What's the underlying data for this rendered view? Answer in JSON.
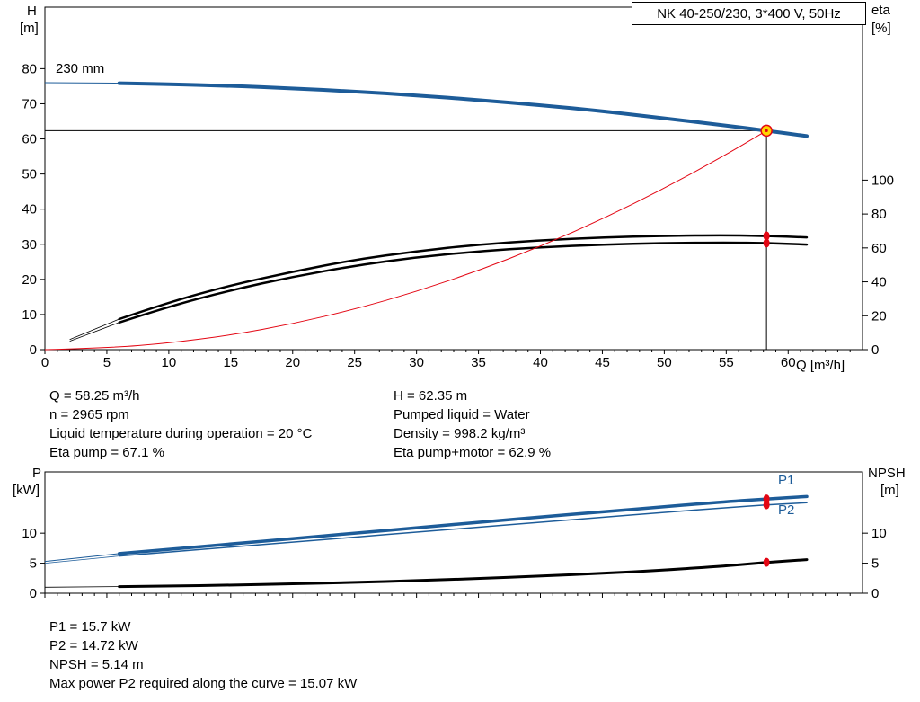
{
  "title_box": {
    "label": "NK 40-250/230, 3*400 V, 50Hz"
  },
  "top_chart": {
    "y_left_unit_top": "H",
    "y_left_unit_bottom": "[m]",
    "y_right_unit_top": "eta",
    "y_right_unit_bottom": "[%]",
    "x_axis_label": "Q [m³/h]",
    "impeller_label": "230 mm"
  },
  "bottom_chart": {
    "y_left_unit_top": "P",
    "y_left_unit_bottom": "[kW]",
    "y_right_unit_top": "NPSH",
    "y_right_unit_bottom": "[m]",
    "p1_label": "P1",
    "p2_label": "P2"
  },
  "results_top": {
    "left_lines": [
      "Q = 58.25 m³/h",
      "n = 2965 rpm",
      "Liquid temperature during operation = 20 °C",
      "Eta pump = 67.1 %"
    ],
    "right_lines": [
      "H = 62.35 m",
      "Pumped liquid = Water",
      "Density = 998.2 kg/m³",
      "Eta pump+motor = 62.9 %"
    ]
  },
  "results_bottom": {
    "lines": [
      "P1 = 15.7 kW",
      "P2 = 14.72 kW",
      "NPSH = 5.14 m",
      "Max power P2 required along the curve = 15.07 kW"
    ]
  },
  "colors": {
    "curve_blue": "#1d5c99",
    "curve_red": "#e30613",
    "curve_black": "#000000",
    "marker_yellow": "#ffd500"
  },
  "chart_data": [
    {
      "type": "line",
      "title": "NK 40-250/230, 3*400 V, 50Hz",
      "xlabel": "Q [m³/h]",
      "ylabel_left": "H [m]",
      "ylabel_right": "eta [%]",
      "xlim": [
        0,
        66
      ],
      "ylim_left": [
        0,
        97.5
      ],
      "ylim_right": [
        0,
        202
      ],
      "x_major_ticks": [
        0,
        5,
        10,
        15,
        20,
        25,
        30,
        35,
        40,
        45,
        50,
        55,
        60
      ],
      "x_minor_step": 1,
      "x_tick_labels": true,
      "y_left_ticks": [
        0,
        10,
        20,
        30,
        40,
        50,
        60,
        70,
        80
      ],
      "y_right_ticks": [
        0,
        20,
        40,
        60,
        80,
        100
      ],
      "grid": false,
      "series": [
        {
          "name": "head-230mm",
          "axis": "left",
          "color": "#1d5c99",
          "width": 4,
          "thin_until": 6,
          "thin_width": 1,
          "x": [
            0,
            3,
            6,
            10,
            15,
            20,
            25,
            30,
            35,
            40,
            45,
            50,
            55,
            58.25,
            61.5
          ],
          "y": [
            76,
            75.95,
            75.85,
            75.6,
            75.1,
            74.4,
            73.5,
            72.4,
            71.1,
            69.6,
            67.9,
            65.9,
            63.8,
            62.35,
            60.8
          ]
        },
        {
          "name": "eta-pump",
          "axis": "right",
          "color": "#000000",
          "width": 2.5,
          "thin_until": 6,
          "thin_width": 0.8,
          "x": [
            2,
            6,
            10,
            15,
            20,
            25,
            30,
            35,
            40,
            45,
            50,
            55,
            58.25,
            61.5
          ],
          "y": [
            6,
            18,
            28,
            38,
            46,
            53,
            58,
            62,
            64.5,
            66.2,
            67.2,
            67.5,
            67.1,
            66.2
          ]
        },
        {
          "name": "eta-pump-motor",
          "axis": "right",
          "color": "#000000",
          "width": 2.5,
          "thin_until": 6,
          "thin_width": 0.8,
          "x": [
            2,
            6,
            10,
            15,
            20,
            25,
            30,
            35,
            40,
            45,
            50,
            55,
            58.25,
            61.5
          ],
          "y": [
            5,
            16,
            25.5,
            35,
            43,
            49.5,
            54.5,
            58,
            60.4,
            62,
            62.9,
            63.2,
            62.9,
            62
          ]
        },
        {
          "name": "system-curve",
          "axis": "left",
          "color": "#e30613",
          "width": 1,
          "x": [
            0,
            5,
            10,
            15,
            20,
            25,
            30,
            35,
            40,
            45,
            50,
            55,
            58.25
          ],
          "y": [
            0,
            0.46,
            1.84,
            4.13,
            7.35,
            11.48,
            16.53,
            22.5,
            29.38,
            37.18,
            45.9,
            55.54,
            62.35
          ]
        }
      ],
      "duty_point": {
        "q": 58.25,
        "h": 62.35
      },
      "markers": [
        {
          "axis": "left",
          "x": 58.25,
          "y": 62.35,
          "shape": "circle",
          "r": 6,
          "fill": "#ffd500",
          "stroke": "#e30613",
          "name": "duty-point-marker"
        },
        {
          "axis": "right",
          "x": 58.25,
          "y": 67.1,
          "shape": "ellipse",
          "rx": 3.5,
          "ry": 5,
          "fill": "#e30613",
          "name": "eta-pump-marker"
        },
        {
          "axis": "right",
          "x": 58.25,
          "y": 62.9,
          "shape": "ellipse",
          "rx": 3.5,
          "ry": 5,
          "fill": "#e30613",
          "name": "eta-pump-motor-marker"
        }
      ]
    },
    {
      "type": "line",
      "title": "",
      "xlabel": "",
      "ylabel_left": "P [kW]",
      "ylabel_right": "NPSH [m]",
      "xlim": [
        0,
        66
      ],
      "ylim_left": [
        0,
        20.2
      ],
      "ylim_right": [
        0,
        20.2
      ],
      "x_major_ticks": [
        0,
        5,
        10,
        15,
        20,
        25,
        30,
        35,
        40,
        45,
        50,
        55,
        60
      ],
      "x_minor_step": 1,
      "x_tick_labels": false,
      "y_left_ticks": [
        0,
        5,
        10
      ],
      "y_right_ticks": [
        0,
        5,
        10
      ],
      "grid": false,
      "series": [
        {
          "name": "p1",
          "axis": "left",
          "color": "#1d5c99",
          "width": 3.5,
          "thin_until": 6,
          "thin_width": 1,
          "x": [
            0,
            3,
            6,
            10,
            15,
            20,
            25,
            30,
            35,
            40,
            45,
            50,
            55,
            58.25,
            61.5
          ],
          "y": [
            5.3,
            5.95,
            6.6,
            7.3,
            8.2,
            9.1,
            10.0,
            10.9,
            11.8,
            12.7,
            13.55,
            14.4,
            15.25,
            15.7,
            16.1
          ]
        },
        {
          "name": "p2",
          "axis": "left",
          "color": "#1d5c99",
          "width": 1.5,
          "thin_until": 6,
          "thin_width": 0.8,
          "x": [
            0,
            3,
            6,
            10,
            15,
            20,
            25,
            30,
            35,
            40,
            45,
            50,
            55,
            58.25,
            61.5
          ],
          "y": [
            5.0,
            5.6,
            6.2,
            6.85,
            7.7,
            8.5,
            9.35,
            10.15,
            11.0,
            11.8,
            12.65,
            13.45,
            14.25,
            14.72,
            15.07
          ]
        },
        {
          "name": "npsh",
          "axis": "right",
          "color": "#000000",
          "width": 3,
          "thin_until": 6,
          "thin_width": 0.8,
          "x": [
            0,
            6,
            10,
            15,
            20,
            25,
            30,
            35,
            40,
            45,
            50,
            55,
            58.25,
            61.5
          ],
          "y": [
            1.0,
            1.1,
            1.2,
            1.35,
            1.55,
            1.8,
            2.1,
            2.45,
            2.85,
            3.3,
            3.85,
            4.55,
            5.14,
            5.6
          ]
        }
      ],
      "markers": [
        {
          "axis": "left",
          "x": 58.25,
          "y": 15.7,
          "shape": "ellipse",
          "rx": 3.5,
          "ry": 5,
          "fill": "#e30613",
          "name": "p1-marker"
        },
        {
          "axis": "left",
          "x": 58.25,
          "y": 14.72,
          "shape": "ellipse",
          "rx": 3.5,
          "ry": 5,
          "fill": "#e30613",
          "name": "p2-marker"
        },
        {
          "axis": "right",
          "x": 58.25,
          "y": 5.14,
          "shape": "ellipse",
          "rx": 3.5,
          "ry": 5,
          "fill": "#e30613",
          "name": "npsh-marker"
        }
      ]
    }
  ]
}
